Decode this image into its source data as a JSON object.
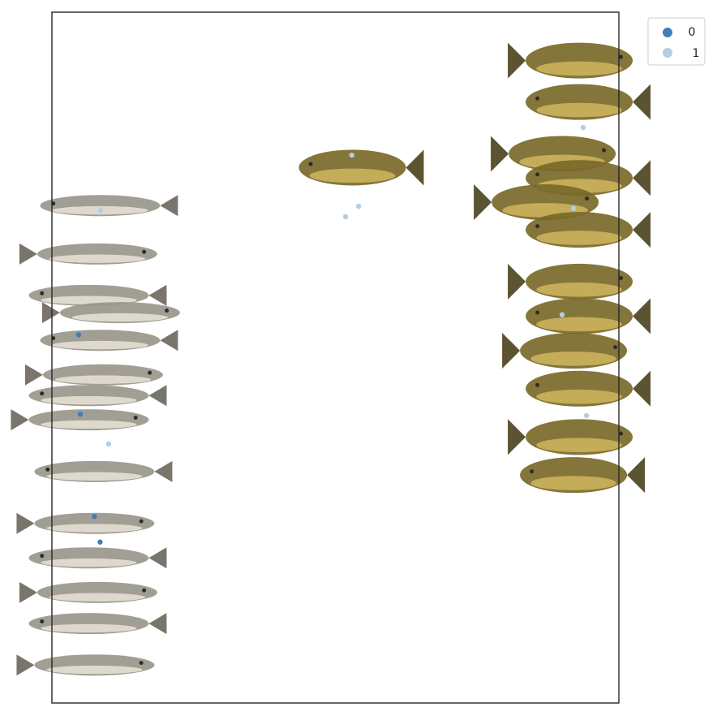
{
  "chart_data": {
    "type": "scatter",
    "title": "",
    "xlabel": "",
    "ylabel": "",
    "xlim": [
      0,
      100
    ],
    "ylim": [
      0,
      100
    ],
    "grid": false,
    "axis_ticks": false,
    "legend": {
      "placement": "outside-top-right",
      "entries": [
        {
          "label": "0",
          "color": "#3f7fba"
        },
        {
          "label": "1",
          "color": "#b3cde3"
        }
      ]
    },
    "series": [
      {
        "name": "0",
        "color": "#3f7fba",
        "points": [
          {
            "x": 4.7,
            "y": 53.3
          },
          {
            "x": 5.0,
            "y": 41.8
          },
          {
            "x": 7.5,
            "y": 27.0
          },
          {
            "x": 8.5,
            "y": 23.3
          }
        ]
      },
      {
        "name": "1",
        "color": "#b3cde3",
        "points": [
          {
            "x": 52.9,
            "y": 79.3
          },
          {
            "x": 54.1,
            "y": 71.9
          },
          {
            "x": 51.8,
            "y": 70.4
          },
          {
            "x": 93.7,
            "y": 83.3
          },
          {
            "x": 92.0,
            "y": 71.6
          },
          {
            "x": 94.3,
            "y": 41.6
          },
          {
            "x": 90.0,
            "y": 56.2
          },
          {
            "x": 8.6,
            "y": 71.3
          },
          {
            "x": 10.0,
            "y": 37.5
          }
        ]
      }
    ],
    "thumbnails": [
      {
        "subject": "sturgeon",
        "x": 8.5,
        "y": 72.0
      },
      {
        "subject": "sturgeon",
        "x": 8.0,
        "y": 65.0
      },
      {
        "subject": "sturgeon",
        "x": 6.5,
        "y": 59.0
      },
      {
        "subject": "sturgeon",
        "x": 12.0,
        "y": 56.5
      },
      {
        "subject": "sturgeon",
        "x": 8.5,
        "y": 52.5
      },
      {
        "subject": "sturgeon",
        "x": 9.0,
        "y": 47.5
      },
      {
        "subject": "sturgeon",
        "x": 6.5,
        "y": 44.5
      },
      {
        "subject": "sturgeon",
        "x": 6.5,
        "y": 41.0
      },
      {
        "subject": "sturgeon",
        "x": 7.5,
        "y": 33.5
      },
      {
        "subject": "sturgeon",
        "x": 7.5,
        "y": 26.0
      },
      {
        "subject": "sturgeon",
        "x": 6.5,
        "y": 21.0
      },
      {
        "subject": "sturgeon",
        "x": 8.0,
        "y": 16.0
      },
      {
        "subject": "sturgeon",
        "x": 6.5,
        "y": 11.5
      },
      {
        "subject": "sturgeon",
        "x": 7.5,
        "y": 5.5
      },
      {
        "subject": "tench",
        "x": 53.0,
        "y": 77.5
      },
      {
        "subject": "tench",
        "x": 93.0,
        "y": 93.0
      },
      {
        "subject": "tench",
        "x": 93.0,
        "y": 87.0
      },
      {
        "subject": "tench",
        "x": 90.0,
        "y": 79.5
      },
      {
        "subject": "tench",
        "x": 93.0,
        "y": 76.0
      },
      {
        "subject": "tench",
        "x": 87.0,
        "y": 72.5
      },
      {
        "subject": "tench",
        "x": 93.0,
        "y": 68.5
      },
      {
        "subject": "tench",
        "x": 93.0,
        "y": 61.0
      },
      {
        "subject": "tench",
        "x": 93.0,
        "y": 56.0
      },
      {
        "subject": "tench",
        "x": 92.0,
        "y": 51.0
      },
      {
        "subject": "tench",
        "x": 93.0,
        "y": 45.5
      },
      {
        "subject": "tench",
        "x": 93.0,
        "y": 38.5
      },
      {
        "subject": "tench",
        "x": 92.0,
        "y": 33.0
      }
    ]
  }
}
